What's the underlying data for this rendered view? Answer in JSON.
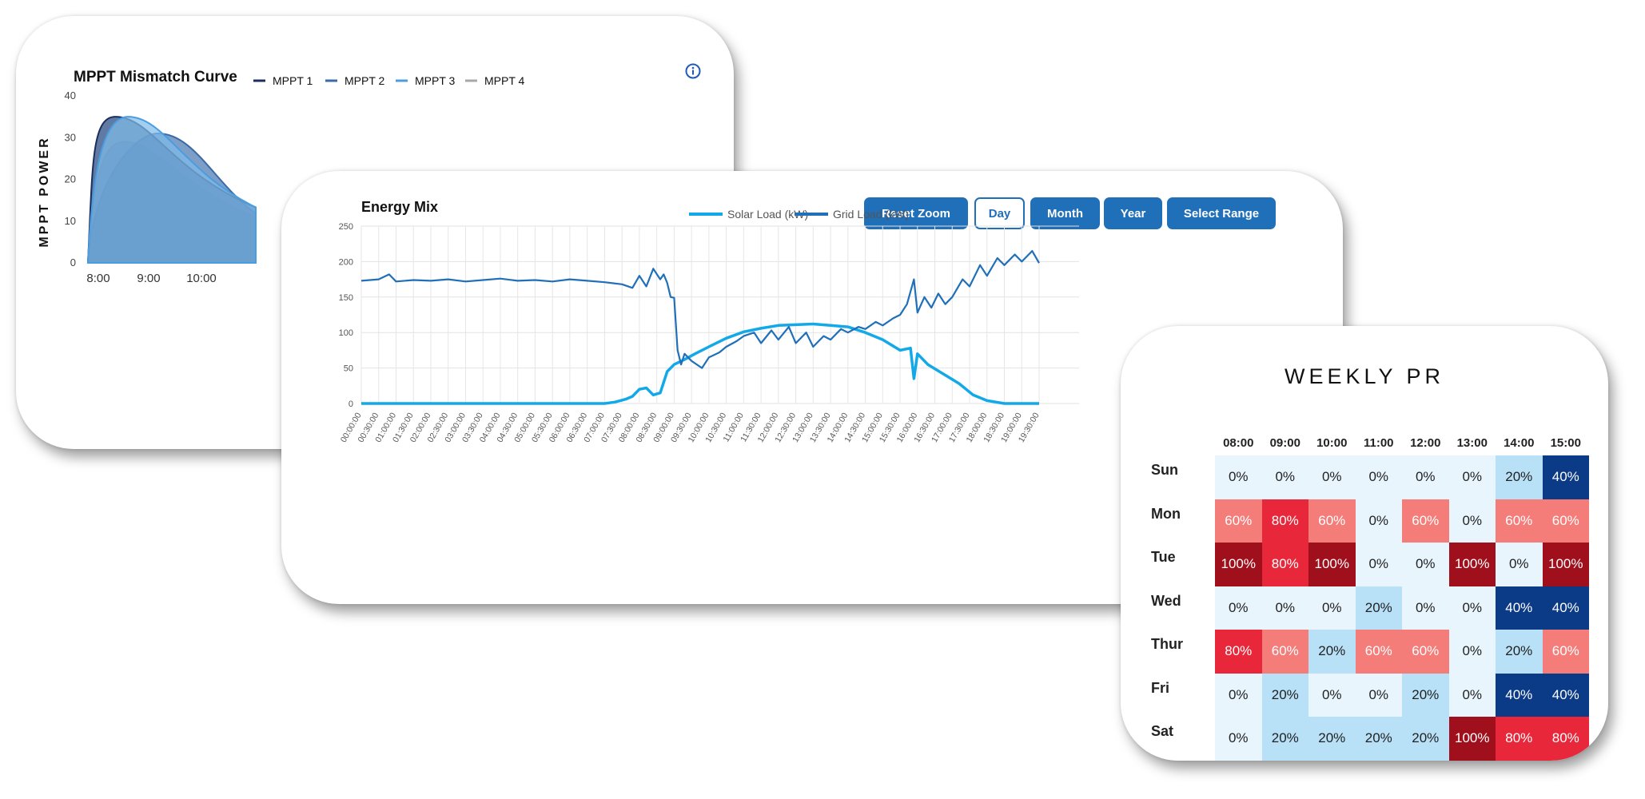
{
  "mppt": {
    "title": "MPPT Mismatch Curve",
    "ylabel": "MPPT POWER",
    "info_icon": "info-icon"
  },
  "energy": {
    "title": "Energy Mix",
    "buttons": [
      "Reset Zoom",
      "Day",
      "Month",
      "Year",
      "Select Range"
    ],
    "active_button": "Day"
  },
  "weekly_pr": {
    "title": "WEEKLY PR"
  },
  "chart_data": [
    {
      "type": "area",
      "title": "MPPT Mismatch Curve",
      "ylabel": "MPPT POWER",
      "ylim": [
        0,
        40
      ],
      "yticks": [
        0,
        10,
        20,
        30,
        40
      ],
      "xticks": [
        "8:00",
        "9:00",
        "10:00"
      ],
      "legend_position": "top-right",
      "series": [
        {
          "name": "MPPT 1",
          "color": "#1b2f5e",
          "peak_x": "8:20",
          "peak_y": 35
        },
        {
          "name": "MPPT 2",
          "color": "#3a6aa8",
          "peak_x": "9:10",
          "peak_y": 31
        },
        {
          "name": "MPPT 3",
          "color": "#4a9de0",
          "peak_x": "8:35",
          "peak_y": 35
        },
        {
          "name": "MPPT 4",
          "color": "#a8a8a8",
          "peak_x": "8:30",
          "peak_y": 29
        }
      ]
    },
    {
      "type": "line",
      "title": "Energy Mix",
      "ylim": [
        0,
        250
      ],
      "yticks": [
        0,
        50,
        100,
        150,
        200,
        250
      ],
      "xticks": [
        "00:00:00",
        "00:30:00",
        "01:00:00",
        "01:30:00",
        "02:00:00",
        "02:30:00",
        "03:00:00",
        "03:30:00",
        "04:00:00",
        "04:30:00",
        "05:00:00",
        "05:30:00",
        "06:00:00",
        "06:30:00",
        "07:00:00",
        "07:30:00",
        "08:00:00",
        "08:30:00",
        "09:00:00",
        "09:30:00",
        "10:00:00",
        "10:30:00",
        "11:00:00",
        "11:30:00",
        "12:00:00",
        "12:30:00",
        "13:00:00",
        "13:30:00",
        "14:00:00",
        "14:30:00",
        "15:00:00",
        "15:30:00",
        "16:00:00",
        "16:30:00",
        "17:00:00",
        "17:30:00",
        "18:00:00",
        "18:30:00",
        "19:00:00",
        "19:30:00"
      ],
      "legend_position": "top-center",
      "series": [
        {
          "name": "Solar Load (kW)",
          "color": "#13a9e8",
          "x_hours": [
            0,
            7,
            7.3,
            7.6,
            7.8,
            8.0,
            8.2,
            8.4,
            8.6,
            8.8,
            9.0,
            9.3,
            9.6,
            10.0,
            10.5,
            11.0,
            11.5,
            12.0,
            12.5,
            13.0,
            13.5,
            14.0,
            14.5,
            15.0,
            15.5,
            15.8,
            15.9,
            16.0,
            16.3,
            16.8,
            17.2,
            17.6,
            18.0,
            18.5,
            19.0,
            19.5
          ],
          "values": [
            0,
            0,
            2,
            6,
            10,
            20,
            22,
            12,
            15,
            45,
            55,
            62,
            70,
            80,
            92,
            101,
            106,
            110,
            111,
            112,
            110,
            108,
            100,
            90,
            75,
            78,
            35,
            70,
            55,
            40,
            28,
            12,
            4,
            0,
            0,
            0
          ]
        },
        {
          "name": "Grid Load (kW)",
          "color": "#1f6fb9",
          "x_hours": [
            0,
            0.5,
            0.8,
            1,
            1.5,
            2,
            2.5,
            3,
            3.5,
            4,
            4.5,
            5,
            5.5,
            6,
            6.5,
            7,
            7.5,
            7.8,
            8.0,
            8.2,
            8.4,
            8.6,
            8.7,
            8.8,
            8.9,
            9.0,
            9.1,
            9.2,
            9.3,
            9.5,
            9.8,
            10.0,
            10.3,
            10.5,
            10.8,
            11.0,
            11.3,
            11.5,
            11.8,
            12.0,
            12.3,
            12.5,
            12.8,
            13.0,
            13.3,
            13.5,
            13.8,
            14.0,
            14.3,
            14.5,
            14.8,
            15.0,
            15.3,
            15.5,
            15.7,
            15.9,
            16.0,
            16.2,
            16.4,
            16.6,
            16.8,
            17.0,
            17.3,
            17.5,
            17.8,
            18.0,
            18.3,
            18.5,
            18.8,
            19.0,
            19.3,
            19.5
          ],
          "values": [
            173,
            175,
            182,
            172,
            174,
            173,
            175,
            172,
            174,
            176,
            173,
            174,
            172,
            175,
            173,
            171,
            168,
            163,
            180,
            165,
            190,
            175,
            182,
            170,
            150,
            149,
            75,
            55,
            70,
            60,
            50,
            65,
            72,
            80,
            88,
            95,
            100,
            85,
            103,
            90,
            108,
            85,
            100,
            80,
            95,
            90,
            105,
            100,
            108,
            105,
            115,
            110,
            120,
            125,
            140,
            175,
            128,
            150,
            135,
            155,
            140,
            150,
            175,
            165,
            195,
            180,
            205,
            195,
            210,
            200,
            215,
            198
          ]
        }
      ]
    },
    {
      "type": "heatmap",
      "title": "WEEKLY PR",
      "columns": [
        "08:00",
        "09:00",
        "10:00",
        "11:00",
        "12:00",
        "13:00",
        "14:00",
        "15:00"
      ],
      "rows": [
        "Sun",
        "Mon",
        "Tue",
        "Wed",
        "Thur",
        "Fri",
        "Sat"
      ],
      "values": [
        [
          0,
          0,
          0,
          0,
          0,
          0,
          20,
          40
        ],
        [
          60,
          80,
          60,
          0,
          60,
          0,
          60,
          60
        ],
        [
          100,
          80,
          100,
          0,
          0,
          100,
          0,
          100
        ],
        [
          0,
          0,
          0,
          20,
          0,
          0,
          40,
          40
        ],
        [
          80,
          60,
          20,
          60,
          60,
          0,
          20,
          60
        ],
        [
          0,
          20,
          0,
          0,
          20,
          0,
          40,
          40
        ],
        [
          0,
          20,
          20,
          20,
          20,
          100,
          80,
          80
        ]
      ],
      "labels": [
        [
          "0%",
          "0%",
          "0%",
          "0%",
          "0%",
          "0%",
          "20%",
          "40%"
        ],
        [
          "60%",
          "80%",
          "60%",
          "0%",
          "60%",
          "0%",
          "60%",
          "60%"
        ],
        [
          "100%",
          "80%",
          "100%",
          "0%",
          "0%",
          "100%",
          "0%",
          "100%"
        ],
        [
          "0%",
          "0%",
          "0%",
          "20%",
          "0%",
          "0%",
          "40%",
          "40%"
        ],
        [
          "80%",
          "60%",
          "20%",
          "60%",
          "60%",
          "0%",
          "20%",
          "60%"
        ],
        [
          "0%",
          "20%",
          "0%",
          "0%",
          "20%",
          "0%",
          "40%",
          "40%"
        ],
        [
          "0%",
          "20%",
          "20%",
          "20%",
          "20%",
          "100%",
          "80%",
          "80%"
        ]
      ],
      "colors": {
        "weekend_0": "#e6f4fc",
        "weekday_0": "#ffffff",
        "20": "#b8e0f7",
        "40": "#0b3a86",
        "60": "#f47d7a",
        "80": "#e8283a",
        "100": "#a0101c"
      }
    }
  ]
}
